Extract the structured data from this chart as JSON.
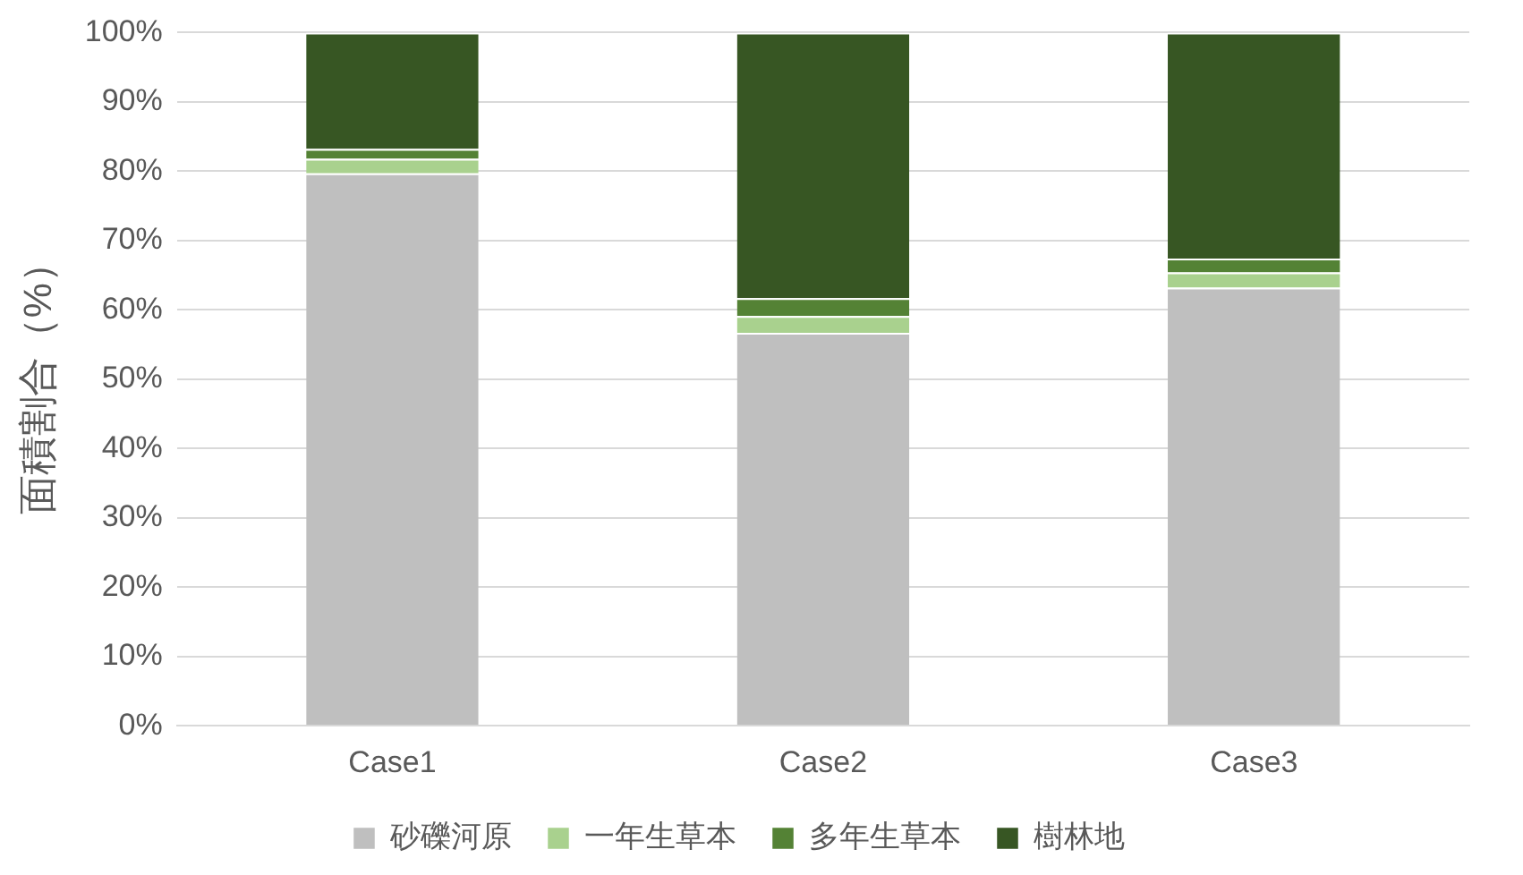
{
  "chart_data": {
    "type": "bar",
    "stacked": true,
    "ylabel": "面積割合（%）",
    "categories": [
      "Case1",
      "Case2",
      "Case3"
    ],
    "series": [
      {
        "name": "砂礫河原",
        "color": "#bfbfbf",
        "values": [
          79.7,
          56.7,
          63.2
        ]
      },
      {
        "name": "一年生草本",
        "color": "#a9d18e",
        "values": [
          2.1,
          2.4,
          2.2
        ]
      },
      {
        "name": "多年生草本",
        "color": "#548235",
        "values": [
          1.4,
          2.6,
          2.0
        ]
      },
      {
        "name": "樹林地",
        "color": "#375623",
        "values": [
          16.8,
          38.3,
          32.6
        ]
      }
    ],
    "ylim": [
      0,
      100
    ],
    "yticks": [
      {
        "value": 0,
        "label": "0%"
      },
      {
        "value": 10,
        "label": "10%"
      },
      {
        "value": 20,
        "label": "20%"
      },
      {
        "value": 30,
        "label": "30%"
      },
      {
        "value": 40,
        "label": "40%"
      },
      {
        "value": 50,
        "label": "50%"
      },
      {
        "value": 60,
        "label": "60%"
      },
      {
        "value": 70,
        "label": "70%"
      },
      {
        "value": 80,
        "label": "80%"
      },
      {
        "value": 90,
        "label": "90%"
      },
      {
        "value": 100,
        "label": "100%"
      }
    ],
    "grid": "y",
    "legend": "bottom"
  }
}
